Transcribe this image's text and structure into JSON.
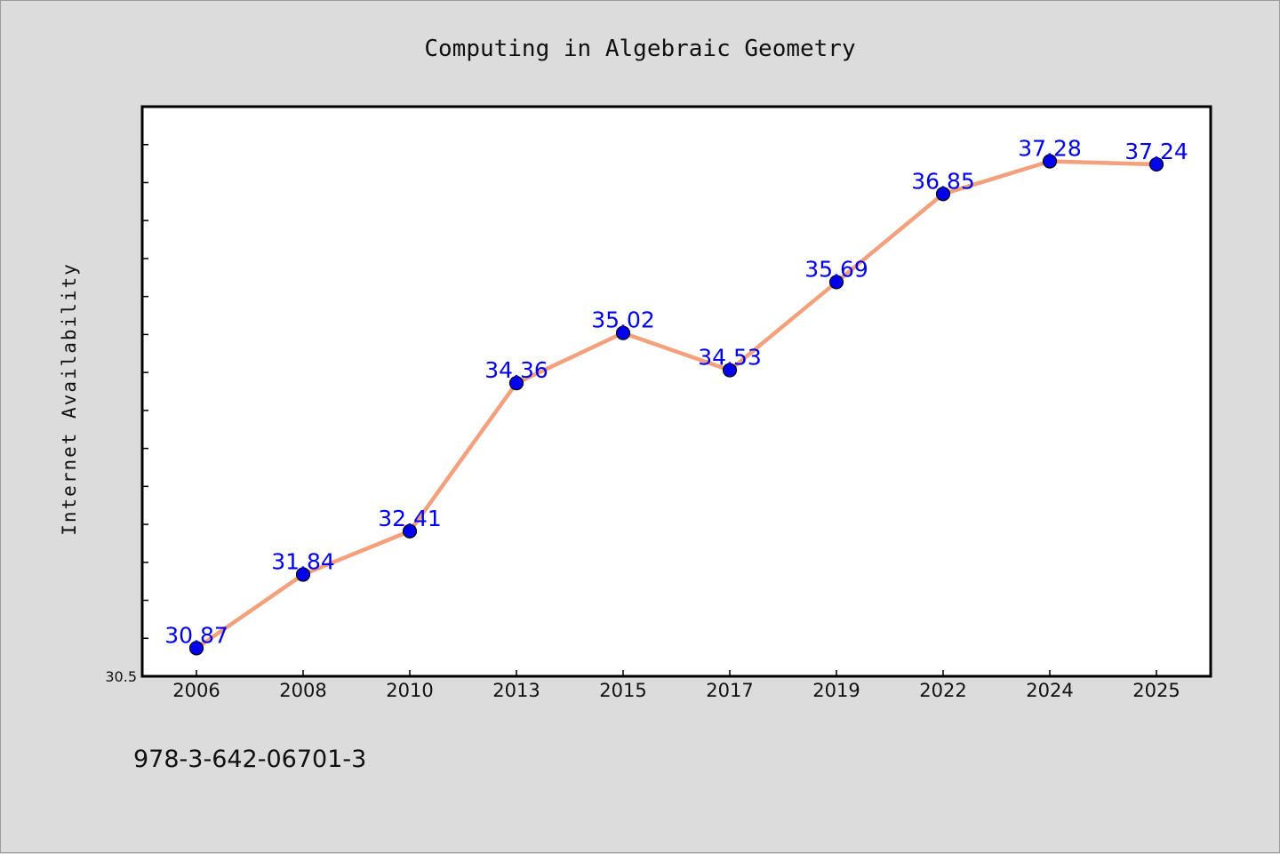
{
  "colors": {
    "background": "#dcdcdc",
    "plot_background": "#ffffff",
    "line": "#f4a07c",
    "marker": "#0000ee",
    "data_label": "#0000ee",
    "axis": "#000000"
  },
  "footer": {
    "id_text": "978-3-642-06701-3"
  },
  "chart_data": {
    "type": "line",
    "title": "Computing in Algebraic Geometry",
    "xlabel": "",
    "ylabel": "Internet Availability",
    "categories": [
      "2006",
      "2008",
      "2010",
      "2013",
      "2015",
      "2017",
      "2019",
      "2022",
      "2024",
      "2025"
    ],
    "series": [
      {
        "values": [
          30.87,
          31.84,
          32.41,
          34.36,
          35.02,
          34.53,
          35.69,
          36.85,
          37.28,
          37.24
        ],
        "labels": [
          "30.87",
          "31.84",
          "32.41",
          "34.36",
          "35.02",
          "34.53",
          "35.69",
          "36.85",
          "37.28",
          "37.24"
        ]
      }
    ],
    "ylim": [
      30.5,
      38.0
    ],
    "yticks_labeled": [
      "30.5"
    ],
    "grid": false,
    "legend": "none"
  }
}
